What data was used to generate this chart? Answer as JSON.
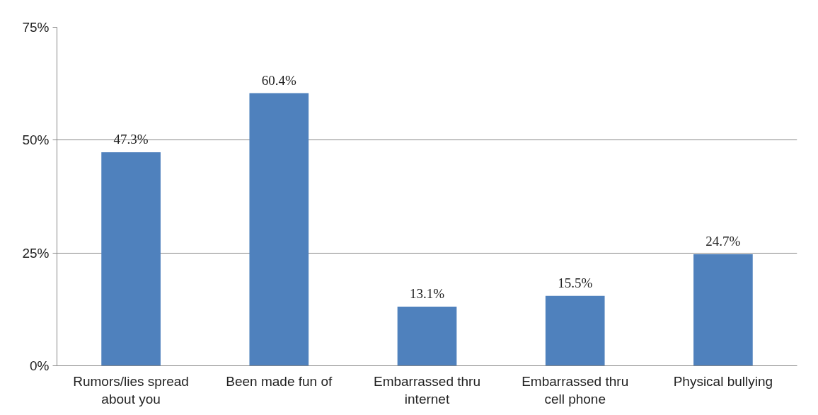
{
  "chart_data": {
    "type": "bar",
    "categories": [
      "Rumors/lies spread about you",
      "Been made fun of",
      "Embarrassed thru internet",
      "Embarrassed thru cell phone",
      "Physical bullying"
    ],
    "values": [
      47.3,
      60.4,
      13.1,
      15.5,
      24.7
    ],
    "value_labels": [
      "47.3%",
      "60.4%",
      "13.1%",
      "15.5%",
      "24.7%"
    ],
    "color": "#4f81bd",
    "ylim": [
      0,
      75
    ],
    "yticks": [
      {
        "value": 0,
        "label": "0%"
      },
      {
        "value": 25,
        "label": "25%"
      },
      {
        "value": 50,
        "label": "50%"
      },
      {
        "value": 75,
        "label": "75%"
      }
    ],
    "grid": "y"
  }
}
